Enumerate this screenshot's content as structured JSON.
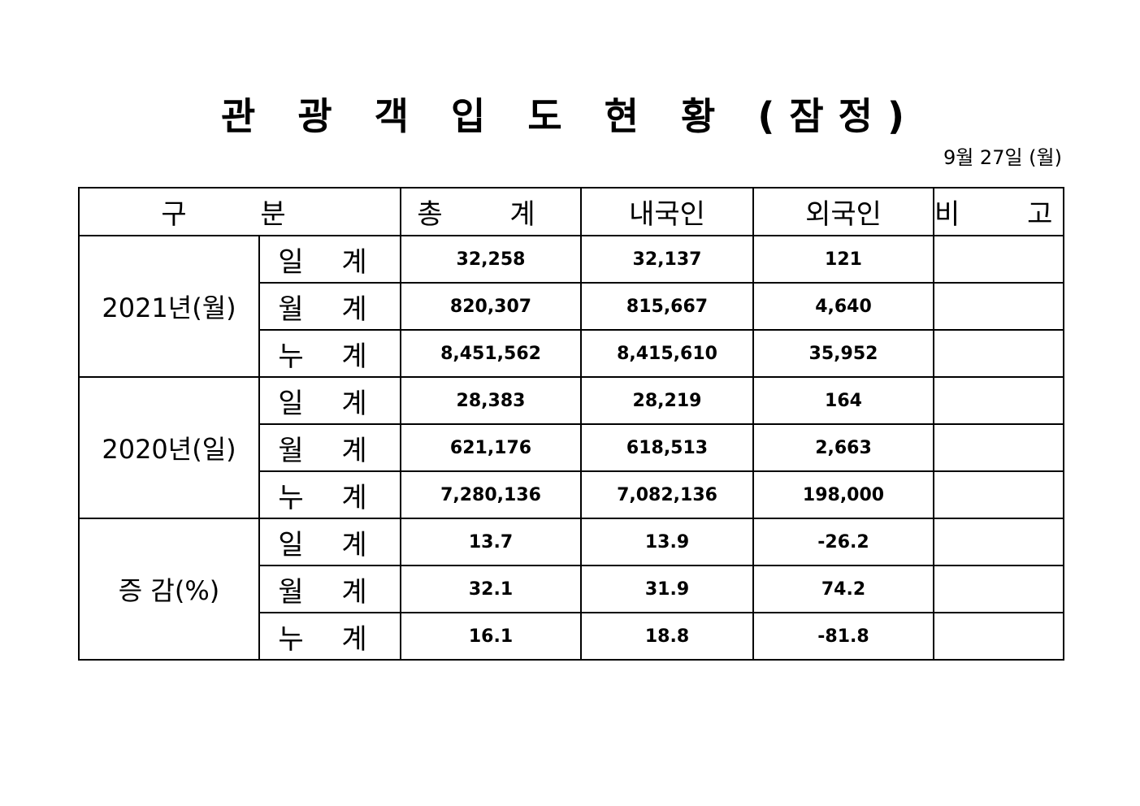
{
  "document": {
    "title": "관 광 객 입 도 현 황 (잠정)",
    "date": "9월 27일 (월)"
  },
  "table": {
    "headers": {
      "category": "구 분",
      "total": "총 계",
      "domestic": "내국인",
      "foreign": "외국인",
      "remarks": "비 고"
    },
    "groups": [
      {
        "label": "2021년(월)",
        "rows": [
          {
            "label": "일 계",
            "total": "32,258",
            "domestic": "32,137",
            "foreign": "121",
            "remarks": ""
          },
          {
            "label": "월 계",
            "total": "820,307",
            "domestic": "815,667",
            "foreign": "4,640",
            "remarks": ""
          },
          {
            "label": "누 계",
            "total": "8,451,562",
            "domestic": "8,415,610",
            "foreign": "35,952",
            "remarks": ""
          }
        ]
      },
      {
        "label": "2020년(일)",
        "rows": [
          {
            "label": "일 계",
            "total": "28,383",
            "domestic": "28,219",
            "foreign": "164",
            "remarks": ""
          },
          {
            "label": "월 계",
            "total": "621,176",
            "domestic": "618,513",
            "foreign": "2,663",
            "remarks": ""
          },
          {
            "label": "누 계",
            "total": "7,280,136",
            "domestic": "7,082,136",
            "foreign": "198,000",
            "remarks": ""
          }
        ]
      },
      {
        "label": "증 감(%)",
        "rows": [
          {
            "label": "일 계",
            "total": "13.7",
            "domestic": "13.9",
            "foreign": "-26.2",
            "remarks": ""
          },
          {
            "label": "월 계",
            "total": "32.1",
            "domestic": "31.9",
            "foreign": "74.2",
            "remarks": ""
          },
          {
            "label": "누 계",
            "total": "16.1",
            "domestic": "18.8",
            "foreign": "-81.8",
            "remarks": ""
          }
        ]
      }
    ]
  }
}
